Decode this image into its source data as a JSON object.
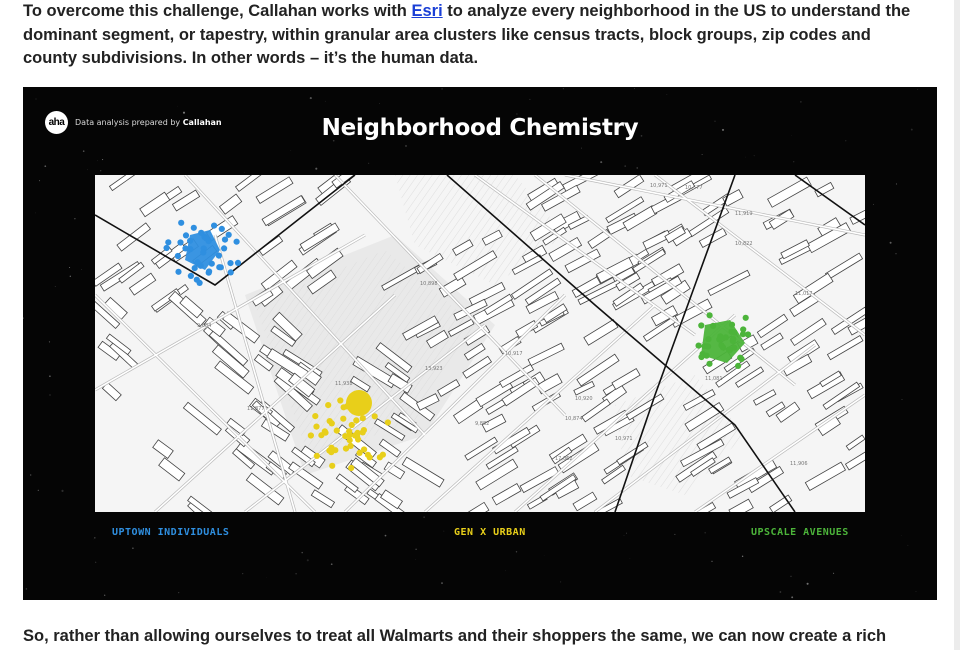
{
  "article": {
    "intro_before_link": "To overcome this challenge, Callahan works with ",
    "link_text": "Esri",
    "intro_after_link": " to analyze every neighborhood in the US to understand the dominant segment, or tapestry, within granular area clusters like census tracts, block groups, zip codes and county subdivisions. In other words – it’s the human data.",
    "next_paragraph": "So, rather than allowing ourselves to treat all Walmarts and their shoppers the same, we can now create a rich"
  },
  "figure": {
    "logo_text": "aha",
    "credit_prefix": "Data analysis prepared by ",
    "credit_name": "Callahan",
    "title": "Neighborhood Chemistry",
    "legend": [
      {
        "label": "UPTOWN INDIVIDUALS",
        "color": "#2f8fe0"
      },
      {
        "label": "GEN X URBAN",
        "color": "#e8cf1a"
      },
      {
        "label": "UPSCALE AVENUES",
        "color": "#4cb43a"
      }
    ],
    "map_labels": [
      "10,971",
      "10,577",
      "9,684",
      "11,877",
      "11,919",
      "10,898",
      "10,917",
      "10,874",
      "13,923",
      "10,920",
      "11,906",
      "11,938",
      "10,971",
      "10,822",
      "17,062",
      "11,081",
      "9,882",
      "11,017"
    ]
  },
  "colors": {
    "link": "#1a3fd6",
    "figure_bg": "#050505",
    "map_bg": "#f4f4f4"
  }
}
